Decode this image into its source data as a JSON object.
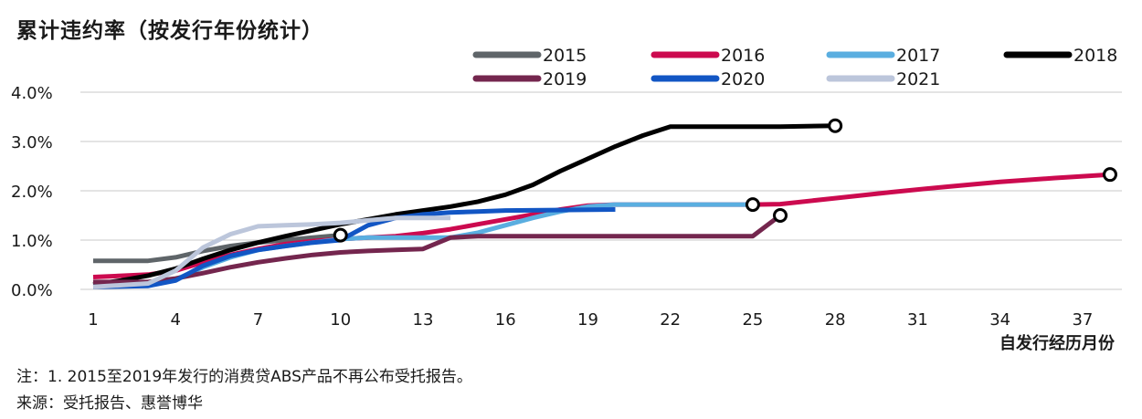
{
  "title": "累计违约率（按发行年份统计）",
  "notes": [
    "注：1. 2015至2019年发行的消费贷ABS产品不再公布受托报告。",
    "来源：受托报告、惠誉博华"
  ],
  "chart_data": {
    "type": "line",
    "title": "累计违约率（按发行年份统计）",
    "xlabel": "自发行经历月份",
    "ylabel": "",
    "xlim": [
      1,
      38
    ],
    "ylim": [
      0,
      4
    ],
    "xticks": [
      1,
      4,
      7,
      10,
      13,
      16,
      19,
      22,
      25,
      28,
      31,
      34,
      37
    ],
    "yticks": [
      0,
      1,
      2,
      3,
      4
    ],
    "ytick_labels": [
      "0.0%",
      "1.0%",
      "2.0%",
      "3.0%",
      "4.0%"
    ],
    "grid": "horizontal",
    "legend_position": "top",
    "series": [
      {
        "name": "2015",
        "color": "#5f6569",
        "points": [
          [
            1,
            0.58
          ],
          [
            3,
            0.58
          ],
          [
            4,
            0.65
          ],
          [
            5,
            0.78
          ],
          [
            6,
            0.88
          ],
          [
            7,
            0.95
          ],
          [
            8,
            1.0
          ],
          [
            9,
            1.05
          ],
          [
            10,
            1.1
          ]
        ],
        "end_marker": [
          10,
          1.1
        ]
      },
      {
        "name": "2016",
        "color": "#cc0a4f",
        "points": [
          [
            1,
            0.25
          ],
          [
            3,
            0.3
          ],
          [
            4,
            0.38
          ],
          [
            5,
            0.55
          ],
          [
            6,
            0.7
          ],
          [
            7,
            0.82
          ],
          [
            8,
            0.92
          ],
          [
            9,
            0.98
          ],
          [
            10,
            1.02
          ],
          [
            11,
            1.05
          ],
          [
            12,
            1.08
          ],
          [
            13,
            1.14
          ],
          [
            14,
            1.22
          ],
          [
            15,
            1.32
          ],
          [
            16,
            1.42
          ],
          [
            17,
            1.52
          ],
          [
            18,
            1.62
          ],
          [
            19,
            1.7
          ],
          [
            20,
            1.72
          ],
          [
            22,
            1.72
          ],
          [
            25,
            1.72
          ],
          [
            26,
            1.73
          ],
          [
            28,
            1.85
          ],
          [
            30,
            1.97
          ],
          [
            32,
            2.08
          ],
          [
            34,
            2.18
          ],
          [
            36,
            2.26
          ],
          [
            38,
            2.33
          ]
        ],
        "end_marker": [
          38,
          2.33
        ]
      },
      {
        "name": "2017",
        "color": "#5aaee0",
        "points": [
          [
            1,
            0.08
          ],
          [
            3,
            0.1
          ],
          [
            4,
            0.2
          ],
          [
            5,
            0.45
          ],
          [
            6,
            0.65
          ],
          [
            7,
            0.8
          ],
          [
            8,
            0.88
          ],
          [
            9,
            0.95
          ],
          [
            10,
            1.02
          ],
          [
            11,
            1.05
          ],
          [
            14,
            1.05
          ],
          [
            15,
            1.15
          ],
          [
            16,
            1.3
          ],
          [
            17,
            1.45
          ],
          [
            18,
            1.58
          ],
          [
            19,
            1.68
          ],
          [
            20,
            1.72
          ],
          [
            22,
            1.72
          ],
          [
            25,
            1.72
          ]
        ],
        "end_marker": [
          25,
          1.72
        ]
      },
      {
        "name": "2018",
        "color": "#000000",
        "points": [
          [
            1,
            0.1
          ],
          [
            2,
            0.18
          ],
          [
            3,
            0.28
          ],
          [
            4,
            0.42
          ],
          [
            5,
            0.62
          ],
          [
            6,
            0.8
          ],
          [
            7,
            0.95
          ],
          [
            8,
            1.08
          ],
          [
            9,
            1.2
          ],
          [
            10,
            1.32
          ],
          [
            11,
            1.42
          ],
          [
            12,
            1.52
          ],
          [
            13,
            1.6
          ],
          [
            14,
            1.68
          ],
          [
            15,
            1.78
          ],
          [
            16,
            1.92
          ],
          [
            17,
            2.12
          ],
          [
            18,
            2.4
          ],
          [
            19,
            2.65
          ],
          [
            20,
            2.9
          ],
          [
            21,
            3.12
          ],
          [
            22,
            3.3
          ],
          [
            24,
            3.3
          ],
          [
            26,
            3.3
          ],
          [
            28,
            3.32
          ]
        ],
        "end_marker": [
          28,
          3.32
        ]
      },
      {
        "name": "2019",
        "color": "#74264e",
        "points": [
          [
            1,
            0.15
          ],
          [
            3,
            0.15
          ],
          [
            4,
            0.22
          ],
          [
            5,
            0.33
          ],
          [
            6,
            0.45
          ],
          [
            7,
            0.55
          ],
          [
            8,
            0.63
          ],
          [
            9,
            0.7
          ],
          [
            10,
            0.75
          ],
          [
            11,
            0.78
          ],
          [
            12,
            0.8
          ],
          [
            13,
            0.82
          ],
          [
            14,
            1.05
          ],
          [
            15,
            1.08
          ],
          [
            25,
            1.08
          ],
          [
            26,
            1.5
          ]
        ],
        "end_marker": [
          26,
          1.5
        ]
      },
      {
        "name": "2020",
        "color": "#1256c4",
        "points": [
          [
            1,
            0.05
          ],
          [
            3,
            0.07
          ],
          [
            4,
            0.18
          ],
          [
            5,
            0.48
          ],
          [
            6,
            0.68
          ],
          [
            7,
            0.8
          ],
          [
            8,
            0.88
          ],
          [
            9,
            0.95
          ],
          [
            10,
            1.0
          ],
          [
            11,
            1.3
          ],
          [
            12,
            1.45
          ],
          [
            13,
            1.52
          ],
          [
            14,
            1.56
          ],
          [
            15,
            1.58
          ],
          [
            16,
            1.6
          ],
          [
            20,
            1.62
          ]
        ],
        "end_marker": null
      },
      {
        "name": "2021",
        "color": "#bcc6db",
        "points": [
          [
            1,
            0.05
          ],
          [
            3,
            0.12
          ],
          [
            4,
            0.38
          ],
          [
            5,
            0.85
          ],
          [
            6,
            1.12
          ],
          [
            7,
            1.28
          ],
          [
            8,
            1.3
          ],
          [
            9,
            1.32
          ],
          [
            10,
            1.35
          ],
          [
            11,
            1.4
          ],
          [
            12,
            1.45
          ],
          [
            13,
            1.45
          ],
          [
            14,
            1.45
          ]
        ],
        "end_marker": null
      }
    ]
  }
}
